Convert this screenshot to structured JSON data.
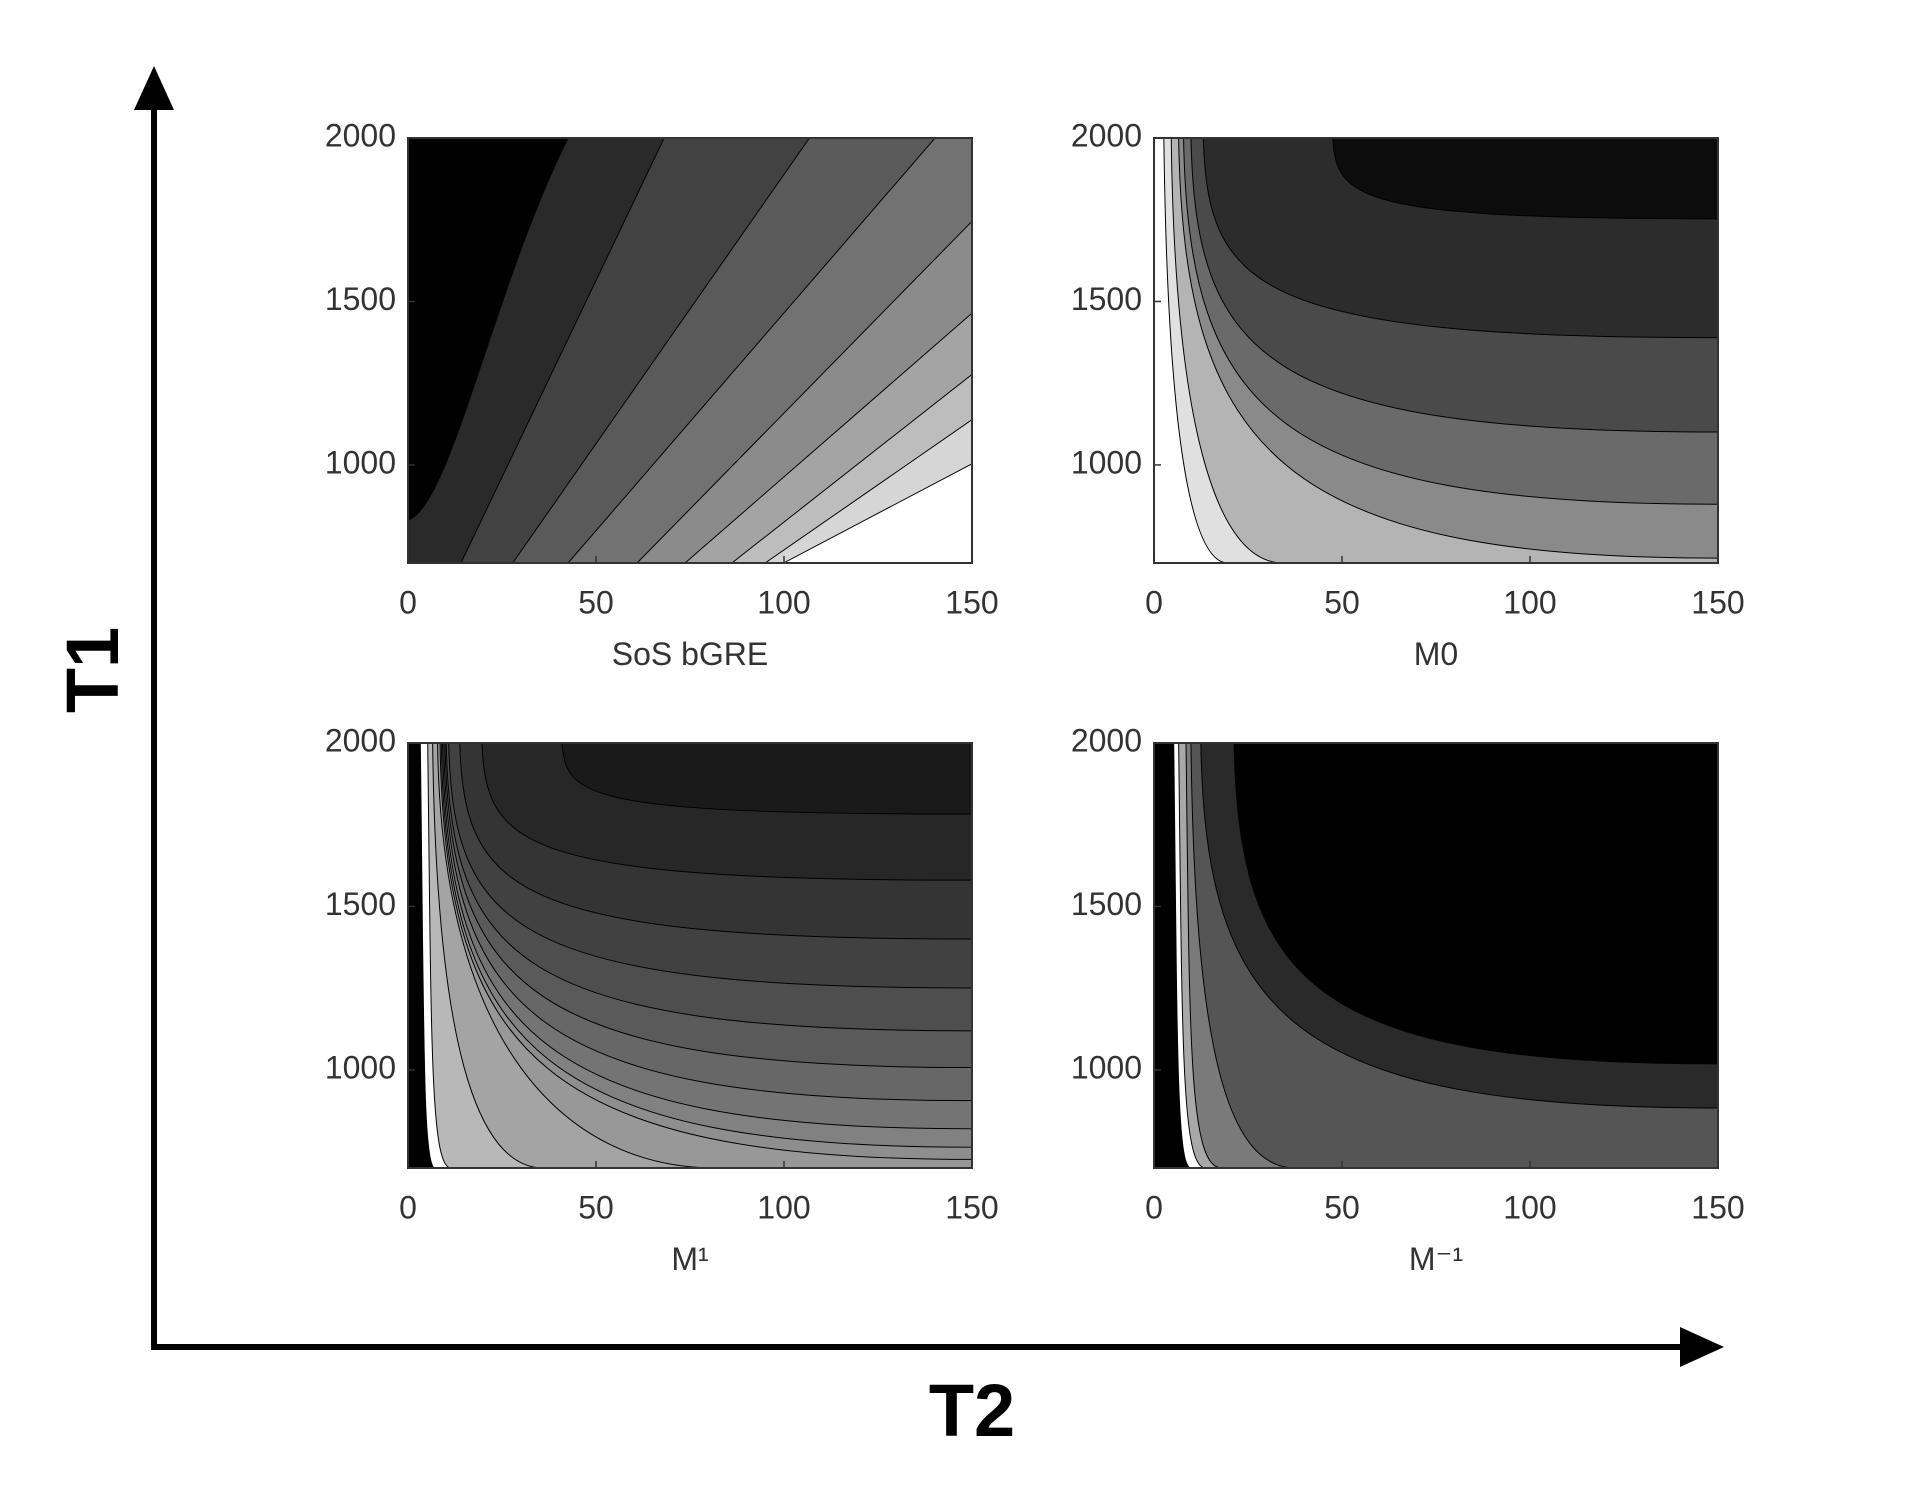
{
  "figure": {
    "x_axis_label": "T2",
    "y_axis_label": "T1"
  },
  "chart_data": [
    {
      "type": "contour",
      "xlabel": "SoS bGRE",
      "xlim": [
        0,
        150
      ],
      "ylim": [
        700,
        2000
      ],
      "xticks": [
        0,
        50,
        100,
        150
      ],
      "yticks": [
        1000,
        1500,
        2000
      ]
    },
    {
      "type": "contour",
      "xlabel": "M0",
      "xlim": [
        0,
        150
      ],
      "ylim": [
        700,
        2000
      ],
      "xticks": [
        0,
        50,
        100,
        150
      ],
      "yticks": [
        1000,
        1500,
        2000
      ]
    },
    {
      "type": "contour",
      "xlabel": "M¹",
      "xlim": [
        0,
        150
      ],
      "ylim": [
        700,
        2000
      ],
      "xticks": [
        0,
        50,
        100,
        150
      ],
      "yticks": [
        1000,
        1500,
        2000
      ]
    },
    {
      "type": "contour",
      "xlabel": "M⁻¹",
      "xlim": [
        0,
        150
      ],
      "ylim": [
        700,
        2000
      ],
      "xticks": [
        0,
        50,
        100,
        150
      ],
      "yticks": [
        1000,
        1500,
        2000
      ]
    }
  ]
}
